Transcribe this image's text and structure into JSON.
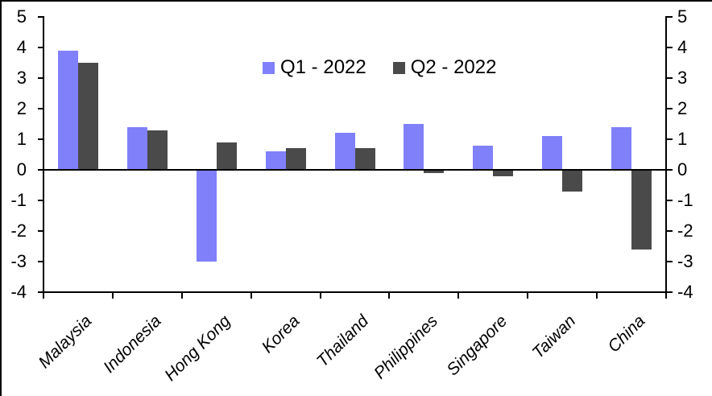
{
  "chart_data": {
    "type": "bar",
    "title": "",
    "categories": [
      "Malaysia",
      "Indonesia",
      "Hong Kong",
      "Korea",
      "Thailand",
      "Philippines",
      "Singapore",
      "Taiwan",
      "China"
    ],
    "series": [
      {
        "name": "Q1 - 2022",
        "color": "#8080FA",
        "values": [
          3.9,
          1.4,
          -3.0,
          0.6,
          1.2,
          1.5,
          0.8,
          1.1,
          1.4
        ]
      },
      {
        "name": "Q2 - 2022",
        "color": "#4A4A4A",
        "values": [
          3.5,
          1.3,
          0.9,
          0.7,
          0.7,
          -0.1,
          -0.2,
          -0.7,
          -2.6
        ]
      }
    ],
    "ylim": [
      -4,
      5
    ],
    "yticks": [
      5,
      4,
      3,
      2,
      1,
      0,
      -1,
      -2,
      -3,
      -4
    ],
    "dual_y_axis": true,
    "grid": false,
    "legend_position": "top-center",
    "axis_color": "#000000",
    "background_color": "#FFFFFF"
  }
}
